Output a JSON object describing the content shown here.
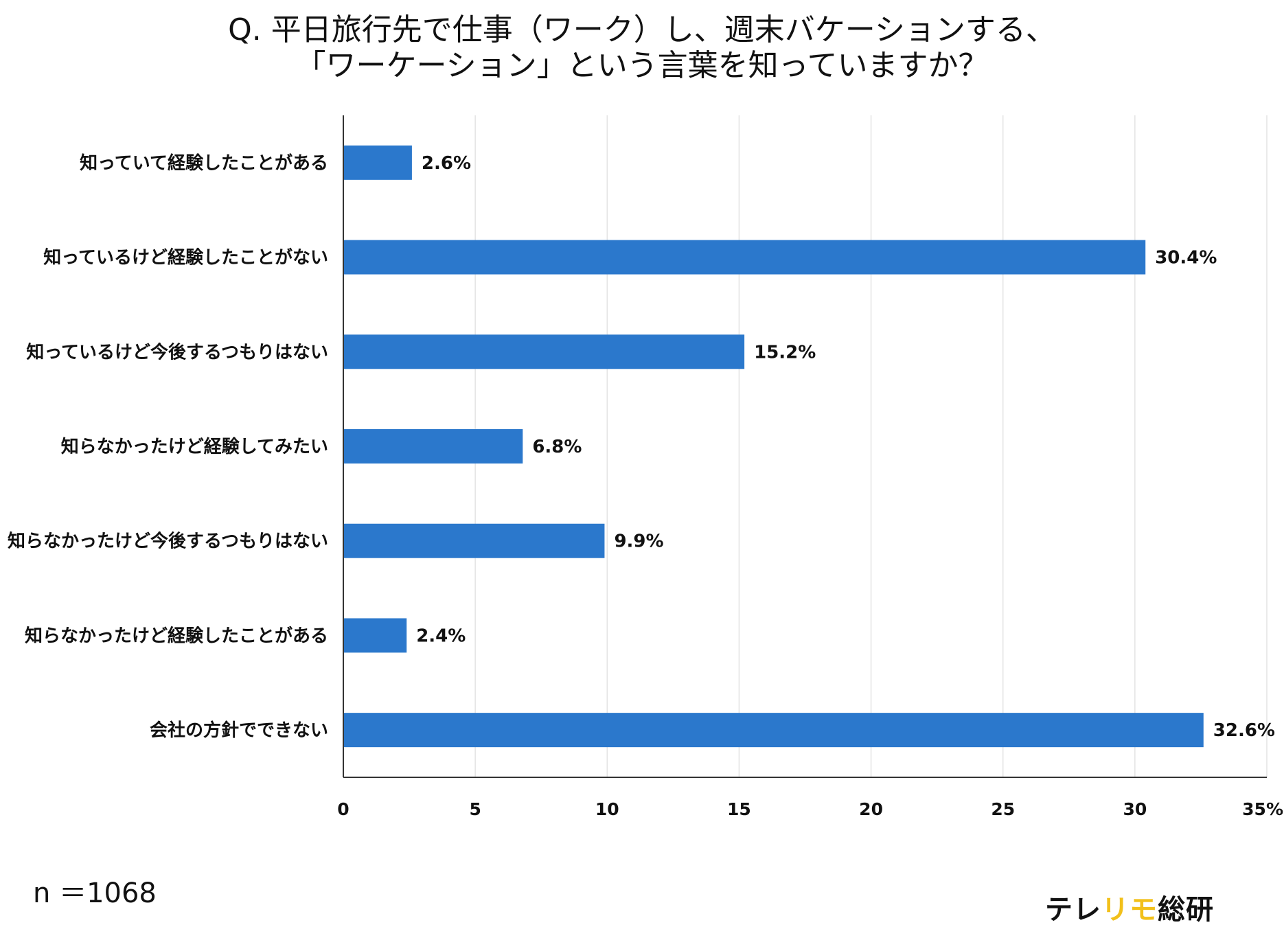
{
  "title_lines": [
    "Q. 平日旅行先で仕事（ワーク）し、週末バケーションする、",
    "「ワーケーション」という言葉を知っていますか？"
  ],
  "chart_data": {
    "type": "bar",
    "orientation": "horizontal",
    "categories": [
      "知っていて経験したことがある",
      "知っているけど経験したことがない",
      "知っているけど今後するつもりはない",
      "知らなかったけど経験してみたい",
      "知らなかったけど今後するつもりはない",
      "知らなかったけど経験したことがある",
      "会社の方針でできない"
    ],
    "values": [
      2.6,
      30.4,
      15.2,
      6.8,
      9.9,
      2.4,
      32.6
    ],
    "data_labels": [
      "2.6%",
      "30.4%",
      "15.2%",
      "6.8%",
      "9.9%",
      "2.4%",
      "32.6%"
    ],
    "xlim": [
      0,
      35
    ],
    "xticks": [
      0,
      5,
      10,
      15,
      20,
      25,
      30,
      35
    ],
    "xtick_labels": [
      "0",
      "5",
      "10",
      "15",
      "20",
      "25",
      "30",
      "35%"
    ],
    "grid": "vertical",
    "bar_color": "#2b78cc",
    "grid_color": "#e3e3e3",
    "axis_color": "#333333"
  },
  "footer": {
    "sample_size": "n ＝1068",
    "brand_parts": [
      "テレ",
      "リモ",
      "総研"
    ],
    "brand_accent_color": "#f2c01a"
  }
}
